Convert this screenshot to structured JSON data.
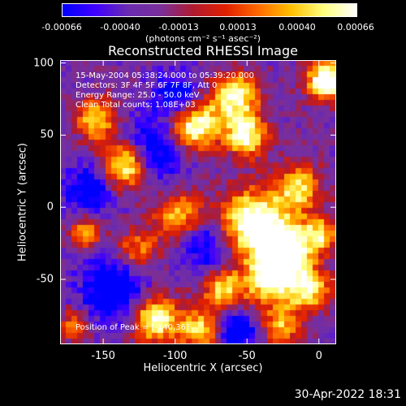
{
  "colorbar": {
    "ticks": [
      "-0.00066",
      "-0.00040",
      "-0.00013",
      "0.00013",
      "0.00040",
      "0.00066"
    ],
    "units": "(photons cm⁻² s⁻¹ asec⁻²)"
  },
  "title": "Reconstructed RHESSI Image",
  "annotations": [
    "15-May-2004 05:38:24.000 to 05:39:20.000",
    "Detectors: 3F 4F 5F 6F 7F 8F, Att 0",
    "Energy Range: 25.0 - 50.0 keV",
    "Clean     Total counts: 1.08E+03"
  ],
  "peak_label": "Position of Peak = [-140,36]",
  "timestamp": "30-Apr-2022 18:31",
  "chart_data": {
    "type": "heatmap",
    "title": "Reconstructed RHESSI Image",
    "xlabel": "Heliocentric X (arcsec)",
    "ylabel": "Heliocentric Y (arcsec)",
    "xlim": [
      -180,
      12
    ],
    "ylim": [
      -95,
      102
    ],
    "xticks": [
      -150,
      -100,
      -50,
      0
    ],
    "yticks": [
      100,
      50,
      0,
      -50
    ],
    "color_range": [
      -0.00066,
      0.00066
    ],
    "colormap": [
      "#0000ff",
      "#4000ff",
      "#6a2bb0",
      "#7a2f9a",
      "#b01a30",
      "#e02000",
      "#ff6a00",
      "#ffc000",
      "#ffff80",
      "#ffffff"
    ],
    "peak_position": [
      -140,
      36
    ]
  }
}
